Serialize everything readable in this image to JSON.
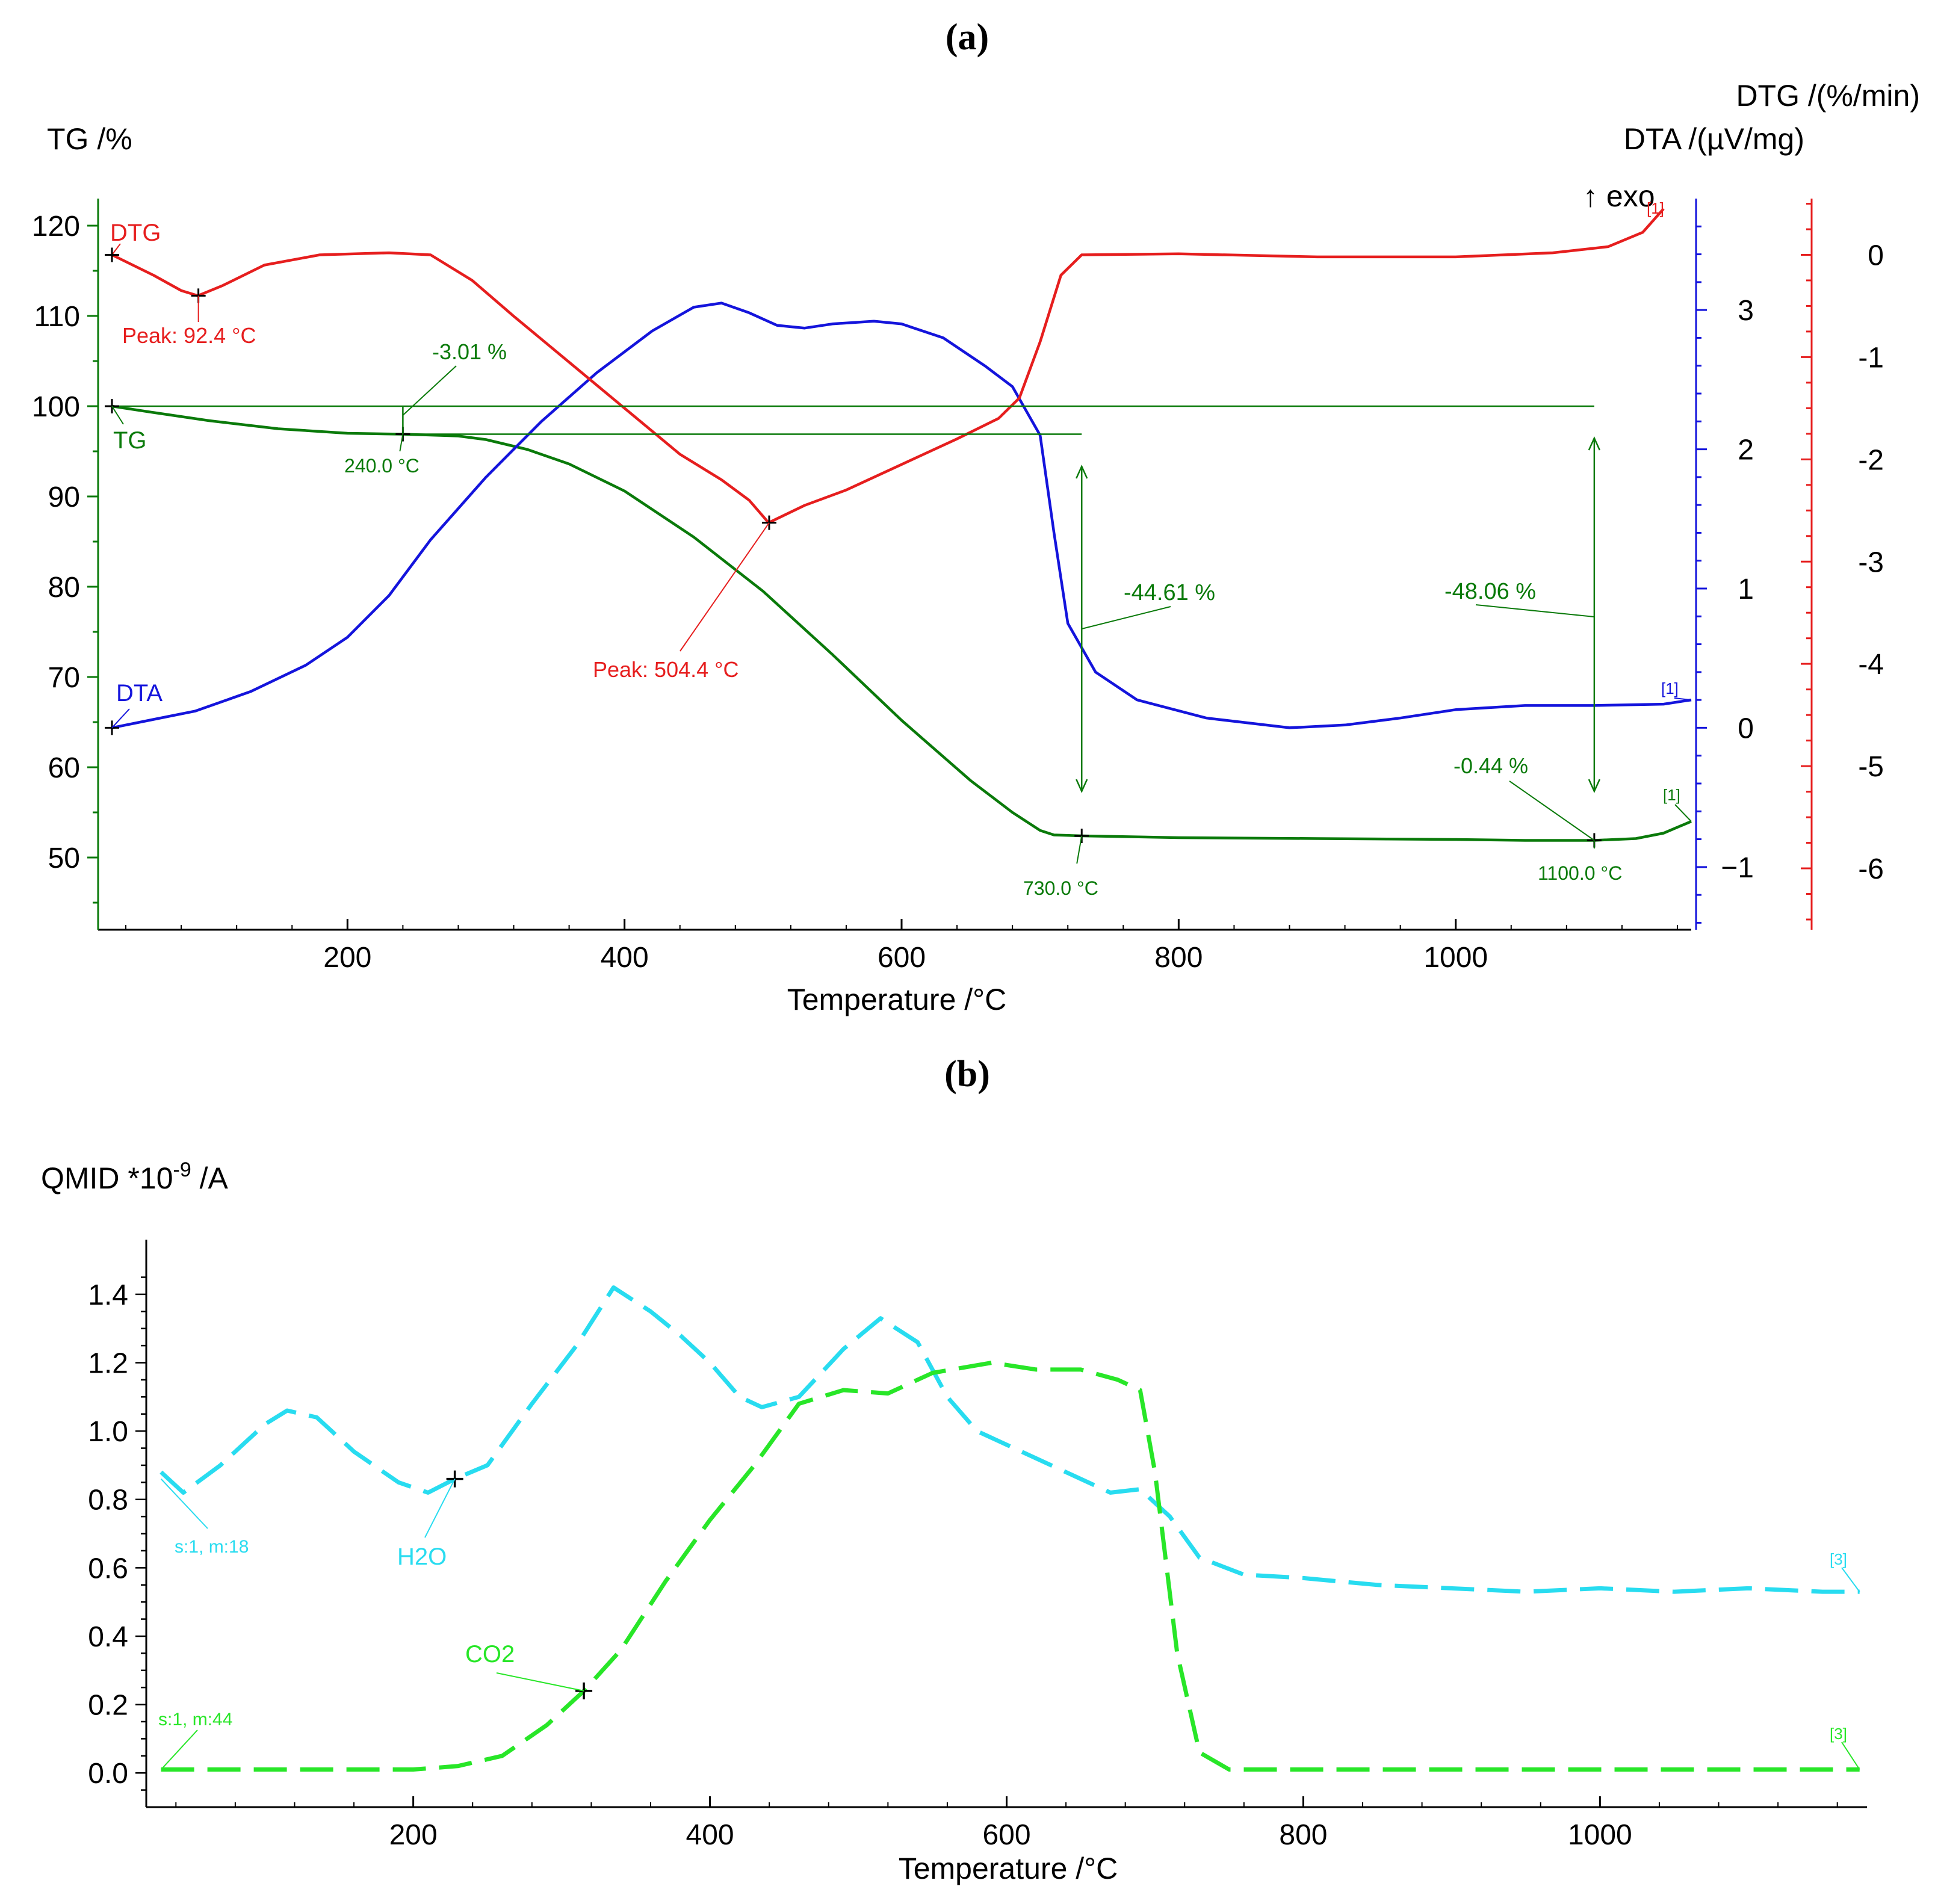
{
  "figure": {
    "panel_a_label": "(a)",
    "panel_b_label": "(b)"
  },
  "chart_data": [
    {
      "type": "line",
      "panel": "a",
      "xlabel": "Temperature /°C",
      "x_ticks": [
        200,
        400,
        600,
        800,
        1000
      ],
      "xlim": [
        20,
        1170
      ],
      "axes": {
        "tg": {
          "label": "TG /%",
          "ticks": [
            50,
            60,
            70,
            80,
            90,
            100,
            110,
            120
          ],
          "ylim": [
            42,
            123
          ],
          "color": "#0a7a0a"
        },
        "dta": {
          "label": "DTA /(µV/mg)",
          "sublabel": "↑ exo",
          "ticks": [
            -1,
            0,
            1,
            2,
            3
          ],
          "ylim": [
            -1.45,
            3.8
          ],
          "color": "#1414dc"
        },
        "dtg": {
          "label": "DTG /(%/min)",
          "ticks": [
            -6,
            -5,
            -4,
            -3,
            -2,
            -1,
            0
          ],
          "ylim": [
            -6.6,
            0.55
          ],
          "color": "#e61e1e"
        }
      },
      "series": [
        {
          "name": "TG",
          "axis": "tg",
          "color": "#0a7a0a",
          "points": [
            [
              30,
              100
            ],
            [
              60,
              99.3
            ],
            [
              100,
              98.4
            ],
            [
              150,
              97.5
            ],
            [
              200,
              97
            ],
            [
              240,
              96.9
            ],
            [
              280,
              96.7
            ],
            [
              300,
              96.3
            ],
            [
              330,
              95.2
            ],
            [
              360,
              93.6
            ],
            [
              400,
              90.6
            ],
            [
              450,
              85.5
            ],
            [
              500,
              79.5
            ],
            [
              550,
              72.5
            ],
            [
              600,
              65.2
            ],
            [
              650,
              58.5
            ],
            [
              680,
              55
            ],
            [
              700,
              53
            ],
            [
              710,
              52.5
            ],
            [
              730,
              52.4
            ],
            [
              800,
              52.2
            ],
            [
              900,
              52.1
            ],
            [
              1000,
              52
            ],
            [
              1050,
              51.9
            ],
            [
              1100,
              51.9
            ],
            [
              1130,
              52.1
            ],
            [
              1150,
              52.7
            ],
            [
              1170,
              54
            ]
          ]
        },
        {
          "name": "DTA",
          "axis": "dta",
          "color": "#1414dc",
          "points": [
            [
              30,
              0
            ],
            [
              60,
              0.06
            ],
            [
              90,
              0.12
            ],
            [
              130,
              0.26
            ],
            [
              170,
              0.45
            ],
            [
              200,
              0.65
            ],
            [
              230,
              0.95
            ],
            [
              260,
              1.35
            ],
            [
              300,
              1.8
            ],
            [
              340,
              2.2
            ],
            [
              380,
              2.55
            ],
            [
              420,
              2.85
            ],
            [
              450,
              3.02
            ],
            [
              470,
              3.05
            ],
            [
              490,
              2.98
            ],
            [
              510,
              2.89
            ],
            [
              530,
              2.87
            ],
            [
              550,
              2.9
            ],
            [
              580,
              2.92
            ],
            [
              600,
              2.9
            ],
            [
              630,
              2.8
            ],
            [
              660,
              2.6
            ],
            [
              680,
              2.45
            ],
            [
              700,
              2.1
            ],
            [
              710,
              1.4
            ],
            [
              720,
              0.75
            ],
            [
              740,
              0.4
            ],
            [
              770,
              0.2
            ],
            [
              820,
              0.07
            ],
            [
              880,
              0
            ],
            [
              920,
              0.02
            ],
            [
              960,
              0.07
            ],
            [
              1000,
              0.13
            ],
            [
              1050,
              0.16
            ],
            [
              1100,
              0.16
            ],
            [
              1150,
              0.17
            ],
            [
              1170,
              0.2
            ]
          ]
        },
        {
          "name": "DTG",
          "axis": "dtg",
          "color": "#e61e1e",
          "points": [
            [
              30,
              0
            ],
            [
              60,
              -0.2
            ],
            [
              80,
              -0.35
            ],
            [
              92,
              -0.4
            ],
            [
              110,
              -0.3
            ],
            [
              140,
              -0.1
            ],
            [
              180,
              0
            ],
            [
              230,
              0.02
            ],
            [
              260,
              0
            ],
            [
              290,
              -0.25
            ],
            [
              320,
              -0.6
            ],
            [
              360,
              -1.05
            ],
            [
              400,
              -1.5
            ],
            [
              440,
              -1.95
            ],
            [
              470,
              -2.2
            ],
            [
              490,
              -2.4
            ],
            [
              504,
              -2.62
            ],
            [
              530,
              -2.45
            ],
            [
              560,
              -2.3
            ],
            [
              600,
              -2.05
            ],
            [
              640,
              -1.8
            ],
            [
              670,
              -1.6
            ],
            [
              685,
              -1.4
            ],
            [
              700,
              -0.85
            ],
            [
              715,
              -0.2
            ],
            [
              730,
              0
            ],
            [
              800,
              0.01
            ],
            [
              900,
              -0.02
            ],
            [
              1000,
              -0.02
            ],
            [
              1070,
              0.02
            ],
            [
              1110,
              0.08
            ],
            [
              1135,
              0.22
            ],
            [
              1150,
              0.45
            ]
          ]
        }
      ],
      "annotations": {
        "dtg_label": "DTG",
        "tg_label": "TG",
        "dta_label": "DTA",
        "peak1": "Peak: 92.4 °C",
        "peak2": "Peak: 504.4 °C",
        "step1": "-3.01 %",
        "t240": "240.0 °C",
        "step2": "-44.61 %",
        "step3": "-48.06 %",
        "step4": "-0.44 %",
        "t730": "730.0 °C",
        "t1100": "1100.0 °C",
        "dta_end": "[1]",
        "tg_end": "[1]",
        "dtg_end": "[1]"
      }
    },
    {
      "type": "line",
      "panel": "b",
      "xlabel": "Temperature /°C",
      "ylabel": "QMID *10",
      "ylabel_exp": "-9",
      "ylabel_unit": " /A",
      "x_ticks": [
        200,
        400,
        600,
        800,
        1000
      ],
      "xlim": [
        20,
        1180
      ],
      "y_ticks": [
        "0.0",
        "0.2",
        "0.4",
        "0.6",
        "0.8",
        "1.0",
        "1.2",
        "1.4"
      ],
      "ylim": [
        -0.1,
        1.56
      ],
      "series": [
        {
          "name": "H2O",
          "tag": "s:1, m:18",
          "end_label": "[3]",
          "color": "#28dcf0",
          "points": [
            [
              30,
              0.88
            ],
            [
              45,
              0.82
            ],
            [
              70,
              0.9
            ],
            [
              100,
              1.02
            ],
            [
              115,
              1.06
            ],
            [
              135,
              1.04
            ],
            [
              160,
              0.94
            ],
            [
              190,
              0.85
            ],
            [
              210,
              0.82
            ],
            [
              228,
              0.86
            ],
            [
              250,
              0.9
            ],
            [
              280,
              1.08
            ],
            [
              310,
              1.25
            ],
            [
              335,
              1.42
            ],
            [
              360,
              1.35
            ],
            [
              380,
              1.28
            ],
            [
              400,
              1.2
            ],
            [
              420,
              1.1
            ],
            [
              435,
              1.07
            ],
            [
              460,
              1.1
            ],
            [
              490,
              1.24
            ],
            [
              515,
              1.33
            ],
            [
              540,
              1.26
            ],
            [
              560,
              1.1
            ],
            [
              580,
              1.0
            ],
            [
              610,
              0.94
            ],
            [
              640,
              0.88
            ],
            [
              670,
              0.82
            ],
            [
              690,
              0.83
            ],
            [
              710,
              0.75
            ],
            [
              730,
              0.63
            ],
            [
              760,
              0.58
            ],
            [
              800,
              0.57
            ],
            [
              850,
              0.55
            ],
            [
              900,
              0.54
            ],
            [
              950,
              0.53
            ],
            [
              1000,
              0.54
            ],
            [
              1050,
              0.53
            ],
            [
              1100,
              0.54
            ],
            [
              1150,
              0.53
            ],
            [
              1175,
              0.53
            ]
          ]
        },
        {
          "name": "CO2",
          "tag": "s:1, m:44",
          "end_label": "[3]",
          "color": "#28e628",
          "points": [
            [
              30,
              0.01
            ],
            [
              200,
              0.01
            ],
            [
              230,
              0.02
            ],
            [
              260,
              0.05
            ],
            [
              290,
              0.14
            ],
            [
              315,
              0.24
            ],
            [
              340,
              0.36
            ],
            [
              370,
              0.56
            ],
            [
              400,
              0.74
            ],
            [
              430,
              0.9
            ],
            [
              460,
              1.08
            ],
            [
              490,
              1.12
            ],
            [
              520,
              1.11
            ],
            [
              550,
              1.17
            ],
            [
              590,
              1.2
            ],
            [
              620,
              1.18
            ],
            [
              650,
              1.18
            ],
            [
              675,
              1.15
            ],
            [
              690,
              1.12
            ],
            [
              700,
              0.88
            ],
            [
              715,
              0.35
            ],
            [
              730,
              0.06
            ],
            [
              750,
              0.01
            ],
            [
              800,
              0.01
            ],
            [
              1175,
              0.01
            ]
          ]
        }
      ],
      "markers": {
        "h2o_point": [
          228,
          0.86
        ],
        "co2_point": [
          315,
          0.24
        ]
      }
    }
  ]
}
